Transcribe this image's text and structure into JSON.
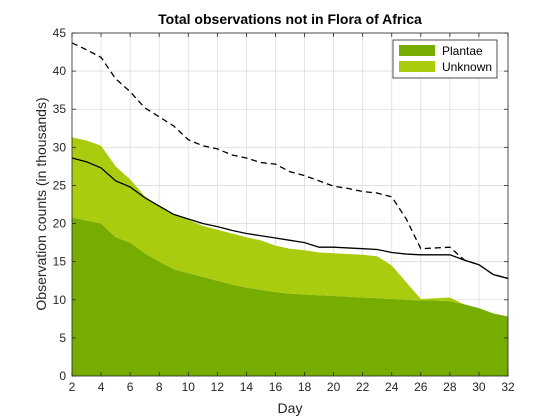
{
  "chart_data": {
    "type": "area",
    "title": "Total observations not in Flora of Africa",
    "xlabel": "Day",
    "ylabel": "Observation counts (in thousands)",
    "xlim": [
      2,
      32
    ],
    "ylim": [
      0,
      45
    ],
    "xticks": [
      2,
      4,
      6,
      8,
      10,
      12,
      14,
      16,
      18,
      20,
      22,
      24,
      26,
      28,
      30,
      32
    ],
    "yticks": [
      0,
      5,
      10,
      15,
      20,
      25,
      30,
      35,
      40,
      45
    ],
    "grid": true,
    "legend_position": "top-right",
    "x": [
      2,
      3,
      4,
      5,
      6,
      7,
      8,
      9,
      10,
      11,
      12,
      13,
      14,
      15,
      16,
      17,
      18,
      19,
      20,
      21,
      22,
      23,
      24,
      25,
      26,
      27,
      28,
      29,
      30,
      31,
      32
    ],
    "stacked_series": [
      {
        "name": "Plantae",
        "color": "#77ac00",
        "values": [
          20.8,
          20.4,
          20.0,
          18.2,
          17.5,
          16.1,
          15.0,
          14.0,
          13.5,
          13.0,
          12.5,
          12.0,
          11.6,
          11.3,
          11.0,
          10.8,
          10.7,
          10.6,
          10.5,
          10.4,
          10.3,
          10.2,
          10.1,
          10.0,
          9.9,
          9.9,
          9.8,
          9.4,
          8.9,
          8.2,
          7.8
        ]
      },
      {
        "name": "Unknown",
        "color": "#a9cc0e",
        "values": [
          10.5,
          10.5,
          10.2,
          9.3,
          8.3,
          7.5,
          7.3,
          7.3,
          7.0,
          6.7,
          6.7,
          6.7,
          6.6,
          6.5,
          6.1,
          5.9,
          5.8,
          5.6,
          5.6,
          5.6,
          5.6,
          5.5,
          4.4,
          2.3,
          0.2,
          0.3,
          0.5,
          0.0,
          0.0,
          0.0,
          0.0
        ]
      }
    ],
    "lines": [
      {
        "style": "solid",
        "color": "#000000",
        "values": [
          28.6,
          28.1,
          27.3,
          25.6,
          24.8,
          23.4,
          22.3,
          21.2,
          20.6,
          20.0,
          19.6,
          19.1,
          18.7,
          18.4,
          18.1,
          17.8,
          17.5,
          16.9,
          16.9,
          16.8,
          16.7,
          16.6,
          16.2,
          16.0,
          15.9,
          15.9,
          15.9,
          15.2,
          14.6,
          13.3,
          12.8
        ]
      },
      {
        "style": "dashed",
        "color": "#000000",
        "values": [
          43.7,
          42.8,
          41.8,
          39.0,
          37.3,
          35.2,
          34.0,
          32.8,
          31.0,
          30.2,
          29.8,
          29.0,
          28.6,
          28.0,
          27.8,
          26.8,
          26.3,
          25.6,
          24.9,
          24.6,
          24.2,
          24.0,
          23.5,
          20.6,
          16.7,
          16.8,
          16.9,
          15.2,
          14.6,
          13.3,
          12.8
        ]
      }
    ]
  }
}
